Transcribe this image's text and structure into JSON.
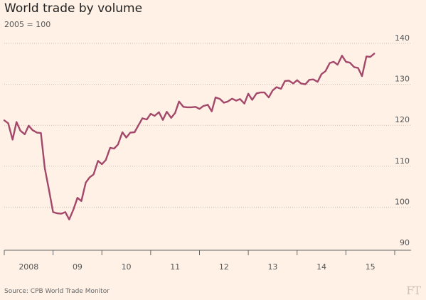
{
  "title": "World trade by volume",
  "subtitle": "2005 = 100",
  "source": "Source: CPB World Trade Monitor",
  "logo": "FT",
  "colors": {
    "background": "#fff1e5",
    "line": "#a3486a",
    "grid": "#c9bcb0",
    "axis": "#666666"
  },
  "chart_data": {
    "type": "line",
    "title": "World trade by volume",
    "subtitle": "2005 = 100",
    "xlabel": "",
    "ylabel": "",
    "ylim": [
      90,
      140
    ],
    "yticks": [
      90,
      100,
      110,
      120,
      130,
      140
    ],
    "ytick_labels": [
      "90",
      "100",
      "110",
      "120",
      "130",
      "140"
    ],
    "y_axis_side": "right",
    "grid": "horizontal dotted",
    "xlim": [
      2008.0,
      2016.0
    ],
    "xticks": [
      2008,
      2009,
      2010,
      2011,
      2012,
      2013,
      2014,
      2015
    ],
    "xtick_labels": [
      "2008",
      "09",
      "10",
      "11",
      "12",
      "13",
      "14",
      "15"
    ],
    "series": [
      {
        "x": [
          2008.0,
          2008.08,
          2008.17,
          2008.25,
          2008.33,
          2008.42,
          2008.5,
          2008.58,
          2008.67,
          2008.75,
          2008.83,
          2008.92,
          2009.0,
          2009.08,
          2009.17,
          2009.25,
          2009.33,
          2009.42,
          2009.5,
          2009.58,
          2009.67,
          2009.75,
          2009.83,
          2009.92,
          2010.0,
          2010.08,
          2010.17,
          2010.25,
          2010.33,
          2010.42,
          2010.5,
          2010.58,
          2010.67,
          2010.75,
          2010.83,
          2010.92,
          2011.0,
          2011.08,
          2011.17,
          2011.25,
          2011.33,
          2011.42,
          2011.5,
          2011.58,
          2011.67,
          2011.75,
          2011.83,
          2011.92,
          2012.0,
          2012.08,
          2012.17,
          2012.25,
          2012.33,
          2012.42,
          2012.5,
          2012.58,
          2012.67,
          2012.75,
          2012.83,
          2012.92,
          2013.0,
          2013.08,
          2013.17,
          2013.25,
          2013.33,
          2013.42,
          2013.5,
          2013.58,
          2013.67,
          2013.75,
          2013.83,
          2013.92,
          2014.0,
          2014.08,
          2014.17,
          2014.25,
          2014.33,
          2014.42,
          2014.5,
          2014.58,
          2014.67,
          2014.75,
          2014.83,
          2014.92,
          2015.0,
          2015.08,
          2015.17,
          2015.25,
          2015.33,
          2015.42,
          2015.5,
          2015.58
        ],
        "values": [
          121.2,
          120.5,
          116.5,
          120.8,
          118.7,
          117.8,
          119.9,
          118.8,
          118.2,
          118.1,
          109.5,
          104.0,
          98.8,
          98.5,
          98.4,
          98.8,
          97.0,
          99.5,
          102.3,
          101.5,
          106.0,
          107.3,
          108.0,
          111.3,
          110.5,
          111.5,
          114.5,
          114.3,
          115.3,
          118.3,
          117.0,
          118.2,
          118.3,
          120.0,
          121.7,
          121.4,
          122.8,
          122.3,
          123.2,
          121.3,
          123.3,
          121.8,
          123.0,
          125.8,
          124.5,
          124.4,
          124.4,
          124.5,
          124.0,
          124.7,
          125.0,
          123.4,
          126.8,
          126.4,
          125.5,
          125.8,
          126.5,
          126.0,
          126.4,
          125.3,
          127.7,
          126.2,
          127.8,
          128.0,
          128.0,
          126.8,
          128.5,
          129.3,
          128.9,
          130.8,
          130.9,
          130.2,
          131.0,
          130.2,
          130.0,
          131.1,
          131.2,
          130.6,
          132.5,
          133.2,
          135.2,
          135.5,
          134.8,
          137.0,
          135.5,
          135.3,
          134.2,
          134.0,
          132.0,
          136.8,
          136.7,
          137.5
        ]
      }
    ]
  }
}
